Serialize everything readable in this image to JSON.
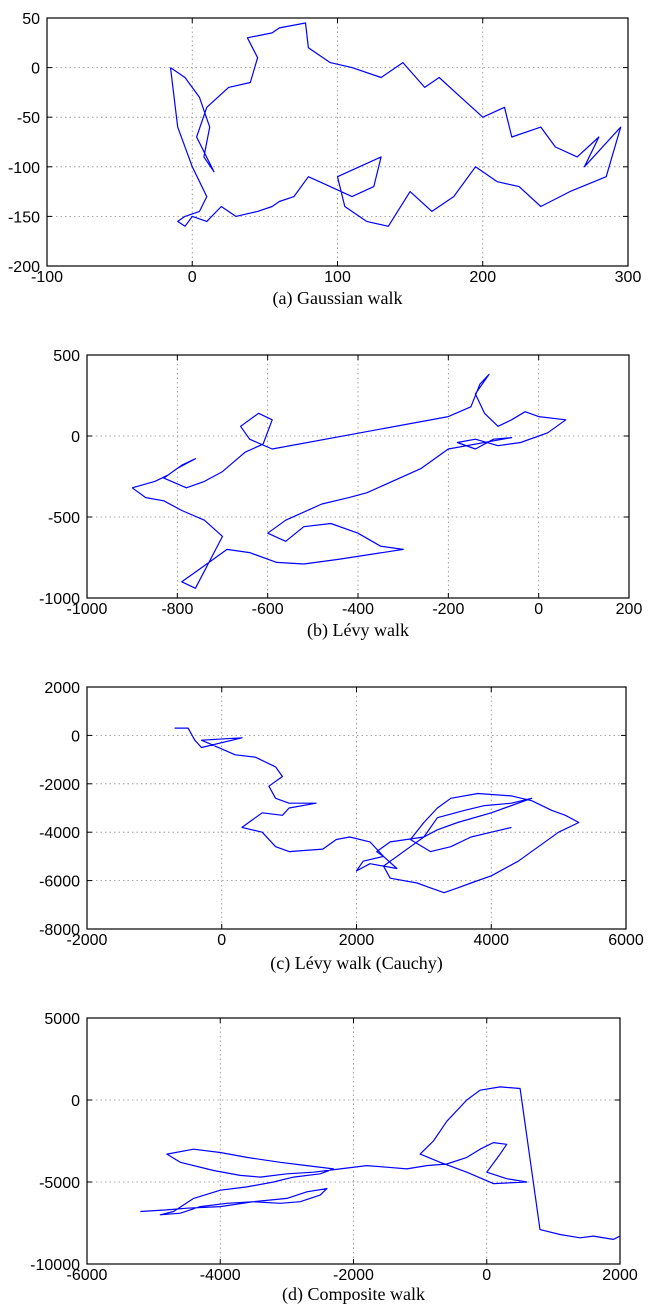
{
  "chart_data": [
    {
      "type": "line",
      "caption": "(a) Gaussian walk",
      "xlim": [
        -100,
        300
      ],
      "ylim": [
        -200,
        50
      ],
      "xticks": [
        -100,
        0,
        100,
        200,
        300
      ],
      "yticks": [
        50,
        0,
        -50,
        -100,
        -150,
        -200
      ],
      "grid": true,
      "color": "#0000ff",
      "series": [
        {
          "x": [
            -15,
            -5,
            5,
            12,
            8,
            15,
            3,
            10,
            25,
            40,
            45,
            38,
            55,
            60,
            78,
            80,
            95,
            110,
            130,
            145,
            160,
            170,
            185,
            200,
            215,
            220,
            240,
            250,
            265,
            280,
            270,
            295,
            285,
            260,
            240,
            225,
            210,
            195,
            180,
            165,
            150,
            135,
            120,
            105,
            100,
            115,
            130,
            125,
            110,
            95,
            80,
            70,
            60,
            55,
            45,
            30,
            20,
            10,
            0,
            -5,
            -10,
            -5,
            5,
            10,
            0,
            -10,
            -15
          ],
          "y": [
            0,
            -10,
            -30,
            -60,
            -90,
            -105,
            -70,
            -40,
            -20,
            -15,
            10,
            30,
            35,
            40,
            45,
            20,
            5,
            0,
            -10,
            5,
            -20,
            -10,
            -30,
            -50,
            -40,
            -70,
            -60,
            -80,
            -90,
            -70,
            -100,
            -60,
            -110,
            -125,
            -140,
            -120,
            -115,
            -100,
            -130,
            -145,
            -125,
            -160,
            -155,
            -140,
            -110,
            -100,
            -90,
            -120,
            -130,
            -120,
            -110,
            -130,
            -135,
            -140,
            -145,
            -150,
            -140,
            -155,
            -150,
            -160,
            -155,
            -150,
            -145,
            -130,
            -100,
            -60,
            0
          ]
        }
      ]
    },
    {
      "type": "line",
      "caption": "(b) Lévy walk",
      "xlim": [
        -1000,
        200
      ],
      "ylim": [
        -1000,
        500
      ],
      "xticks": [
        -1000,
        -800,
        -600,
        -400,
        -200,
        0,
        200
      ],
      "yticks": [
        500,
        0,
        -500,
        -1000
      ],
      "grid": true,
      "color": "#0000ff",
      "series": [
        {
          "x": [
            -900,
            -850,
            -820,
            -790,
            -760,
            -800,
            -830,
            -780,
            -740,
            -700,
            -650,
            -610,
            -590,
            -620,
            -660,
            -640,
            -590,
            -200,
            -150,
            -130,
            -110,
            -140,
            -120,
            -90,
            -60,
            -30,
            0,
            60,
            20,
            -40,
            -90,
            -140,
            -180,
            -140,
            -100,
            -60,
            -200,
            -260,
            -380,
            -420,
            -480,
            -560,
            -600,
            -560,
            -520,
            -460,
            -400,
            -350,
            -300,
            -440,
            -520,
            -580,
            -640,
            -690,
            -720,
            -760,
            -790,
            -760,
            -700,
            -740,
            -790,
            -830,
            -870,
            -900
          ],
          "y": [
            -320,
            -280,
            -240,
            -180,
            -140,
            -200,
            -260,
            -320,
            -280,
            -220,
            -100,
            -50,
            100,
            140,
            60,
            -20,
            -80,
            120,
            180,
            320,
            380,
            260,
            140,
            60,
            100,
            150,
            120,
            100,
            20,
            -40,
            -60,
            -20,
            -40,
            -80,
            -20,
            -10,
            -80,
            -200,
            -350,
            -380,
            -420,
            -520,
            -600,
            -650,
            -560,
            -540,
            -600,
            -680,
            -700,
            -760,
            -790,
            -780,
            -720,
            -700,
            -760,
            -840,
            -900,
            -940,
            -620,
            -520,
            -460,
            -400,
            -380,
            -320
          ]
        }
      ]
    },
    {
      "type": "line",
      "caption": "(c) Lévy walk (Cauchy)",
      "xlim": [
        -2000,
        6000
      ],
      "ylim": [
        -8000,
        2000
      ],
      "xticks": [
        -2000,
        0,
        2000,
        4000,
        6000
      ],
      "yticks": [
        2000,
        0,
        -2000,
        -4000,
        -6000,
        -8000
      ],
      "grid": true,
      "color": "#0000ff",
      "series": [
        {
          "x": [
            -700,
            -500,
            -400,
            -300,
            300,
            -300,
            200,
            500,
            800,
            900,
            700,
            800,
            1000,
            1400,
            1000,
            900,
            600,
            400,
            300,
            600,
            800,
            1000,
            1500,
            1700,
            1900,
            2200,
            2400,
            2600,
            2200,
            2000,
            2100,
            2400,
            2300,
            2500,
            3000,
            3200,
            3600,
            3900,
            4300,
            4600,
            4000,
            3500,
            3200,
            3000,
            2800,
            2400,
            2500,
            2900,
            3100,
            3300,
            3500,
            3700,
            4000,
            4400,
            4700,
            5000,
            5300,
            5100,
            4900,
            4600,
            4300,
            3800,
            3400,
            3200,
            3000,
            2800,
            3100,
            3400,
            3700,
            4000,
            4300
          ],
          "y": [
            300,
            300,
            -200,
            -500,
            -100,
            -200,
            -800,
            -900,
            -1300,
            -1700,
            -2100,
            -2600,
            -2800,
            -2800,
            -3000,
            -3300,
            -3200,
            -3600,
            -3800,
            -4000,
            -4600,
            -4800,
            -4700,
            -4300,
            -4200,
            -4400,
            -5000,
            -5500,
            -5300,
            -5600,
            -5200,
            -5000,
            -4800,
            -4400,
            -4200,
            -3400,
            -3100,
            -2900,
            -2800,
            -2600,
            -3200,
            -3600,
            -3900,
            -4200,
            -4600,
            -5400,
            -5900,
            -6100,
            -6300,
            -6500,
            -6300,
            -6100,
            -5800,
            -5200,
            -4600,
            -4000,
            -3600,
            -3300,
            -3100,
            -2700,
            -2500,
            -2400,
            -2600,
            -3000,
            -3600,
            -4300,
            -4800,
            -4600,
            -4200,
            -4000,
            -3800
          ]
        }
      ]
    },
    {
      "type": "line",
      "caption": "(d) Composite walk",
      "xlim": [
        -6000,
        2000
      ],
      "ylim": [
        -10000,
        5000
      ],
      "xticks": [
        -6000,
        -4000,
        -2000,
        0,
        2000
      ],
      "yticks": [
        5000,
        0,
        -5000,
        -10000
      ],
      "grid": true,
      "color": "#0000ff",
      "series": [
        {
          "x": [
            -5200,
            -4800,
            -4500,
            -4000,
            -3500,
            -3000,
            -2700,
            -2400,
            -2500,
            -2800,
            -3100,
            -3500,
            -3900,
            -4300,
            -4600,
            -4900,
            -4700,
            -4400,
            -4000,
            -3600,
            -3200,
            -2900,
            -2500,
            -2300,
            -2700,
            -3100,
            -3600,
            -4000,
            -4400,
            -4800,
            -4600,
            -4100,
            -3700,
            -3400,
            -3000,
            -2600,
            -2200,
            -1800,
            -1500,
            -1200,
            -900,
            -600,
            -300,
            -100,
            100,
            300,
            200,
            0,
            300,
            600,
            100,
            -300,
            -700,
            -1000,
            -800,
            -600,
            -300,
            -100,
            200,
            500,
            800,
            1100,
            1400,
            1600,
            1900,
            2000
          ],
          "y": [
            -6800,
            -6700,
            -6600,
            -6500,
            -6200,
            -6000,
            -5600,
            -5400,
            -5800,
            -6200,
            -6300,
            -6200,
            -6300,
            -6500,
            -6900,
            -7000,
            -6800,
            -6000,
            -5500,
            -5300,
            -5000,
            -4700,
            -4500,
            -4200,
            -4000,
            -3800,
            -3500,
            -3200,
            -3000,
            -3300,
            -3800,
            -4300,
            -4600,
            -4700,
            -4500,
            -4400,
            -4200,
            -4000,
            -4100,
            -4200,
            -4000,
            -3900,
            -3500,
            -3000,
            -2600,
            -2700,
            -3300,
            -4400,
            -4800,
            -5000,
            -5100,
            -4400,
            -3800,
            -3300,
            -2500,
            -1300,
            0,
            600,
            800,
            700,
            -7900,
            -8200,
            -8400,
            -8300,
            -8500,
            -8300
          ]
        }
      ]
    }
  ]
}
